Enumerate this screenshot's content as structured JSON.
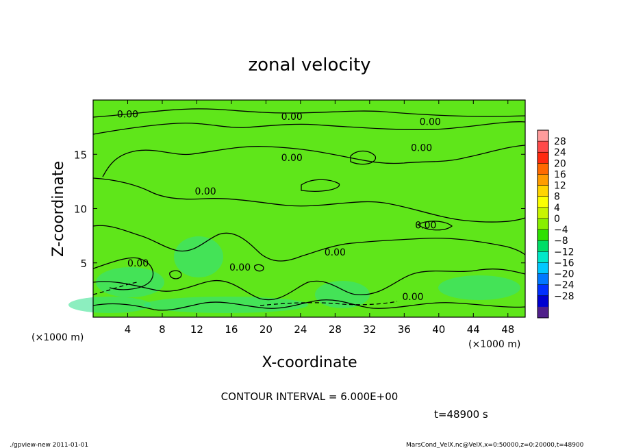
{
  "chart_data": {
    "type": "heatmap",
    "title": "zonal velocity",
    "xlabel": "X-coordinate",
    "ylabel": "Z-coordinate",
    "x_unit_left": "(×1000 m)",
    "x_unit_right": "(×1000 m)",
    "xlim": [
      0,
      50
    ],
    "ylim": [
      0,
      20
    ],
    "x_ticks": [
      4,
      8,
      12,
      16,
      20,
      24,
      28,
      32,
      36,
      40,
      44,
      48
    ],
    "y_ticks": [
      5,
      10,
      15
    ],
    "contour_interval_text": "CONTOUR INTERVAL = 6.000E+00",
    "time_text": "t=48900 s",
    "contour_labels": [
      {
        "text": "0.00",
        "x": 4.0,
        "z": 18.7
      },
      {
        "text": "0.00",
        "x": 23.0,
        "z": 18.5
      },
      {
        "text": "0.00",
        "x": 39.0,
        "z": 18.0
      },
      {
        "text": "0.00",
        "x": 38.0,
        "z": 15.6
      },
      {
        "text": "0.00",
        "x": 23.0,
        "z": 14.7
      },
      {
        "text": "0.00",
        "x": 13.0,
        "z": 11.6
      },
      {
        "text": "0.00",
        "x": 38.5,
        "z": 8.5
      },
      {
        "text": "0.00",
        "x": 28.0,
        "z": 6.0
      },
      {
        "text": "0.00",
        "x": 17.0,
        "z": 4.6
      },
      {
        "text": "0.00",
        "x": 5.2,
        "z": 5.0
      },
      {
        "text": "0.00",
        "x": 37.0,
        "z": 1.9
      }
    ],
    "colorbar": {
      "labels": [
        "28",
        "24",
        "20",
        "16",
        "12",
        "8",
        "4",
        "0",
        "−4",
        "−8",
        "−12",
        "−16",
        "−20",
        "−24",
        "−28"
      ],
      "colors": [
        "#ff9c9c",
        "#ff4a4a",
        "#ff2a10",
        "#ff6a00",
        "#ff9c00",
        "#ffd400",
        "#fbff00",
        "#c8f500",
        "#88f000",
        "#2ee000",
        "#00dd66",
        "#00e8c8",
        "#00c8ff",
        "#0078ff",
        "#0030ff",
        "#0000d0",
        "#50208a"
      ]
    }
  },
  "footer": {
    "left": "./gpview-new   2011-01-01",
    "right": "MarsCond_VelX.nc@VelX,x=0:50000,z=0:20000,t=48900"
  }
}
